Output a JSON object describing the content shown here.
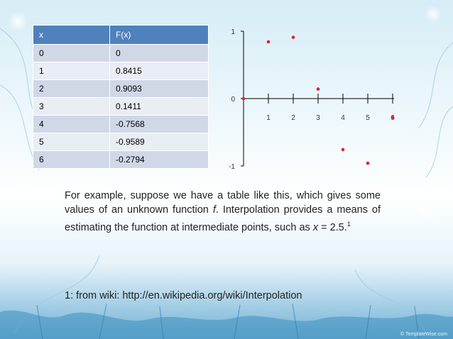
{
  "table": {
    "headers": [
      "x",
      "F(x)"
    ],
    "rows": [
      [
        "0",
        "0"
      ],
      [
        "1",
        "0.8415"
      ],
      [
        "2",
        "0.9093"
      ],
      [
        "3",
        "0.1411"
      ],
      [
        "4",
        "-0.7568"
      ],
      [
        "5",
        "-0.9589"
      ],
      [
        "6",
        "-0.2794"
      ]
    ]
  },
  "chart_data": {
    "type": "scatter",
    "x": [
      0,
      1,
      2,
      3,
      4,
      5,
      6
    ],
    "y": [
      0,
      0.8415,
      0.9093,
      0.1411,
      -0.7568,
      -0.9589,
      -0.2794
    ],
    "xlim": [
      0,
      6
    ],
    "ylim": [
      -1,
      1
    ],
    "x_ticks": [
      "1",
      "2",
      "3",
      "4",
      "5",
      "6"
    ],
    "y_ticks": [
      "1",
      "0",
      "-1"
    ],
    "grid": false,
    "point_color": "#d9252a"
  },
  "text": {
    "para_before_f": "For example, suppose we have a table like this, which gives some values of an unknown function ",
    "f": "f",
    "para_after_f": ". Interpolation provides a means of estimating the function at intermediate points, such as ",
    "x_var": "x",
    "eq": " = 2.5.",
    "sup": "1",
    "footnote": "1: from wiki: http://en.wikipedia.org/wiki/Interpolation",
    "copyright": "© TemplateWise.com"
  }
}
